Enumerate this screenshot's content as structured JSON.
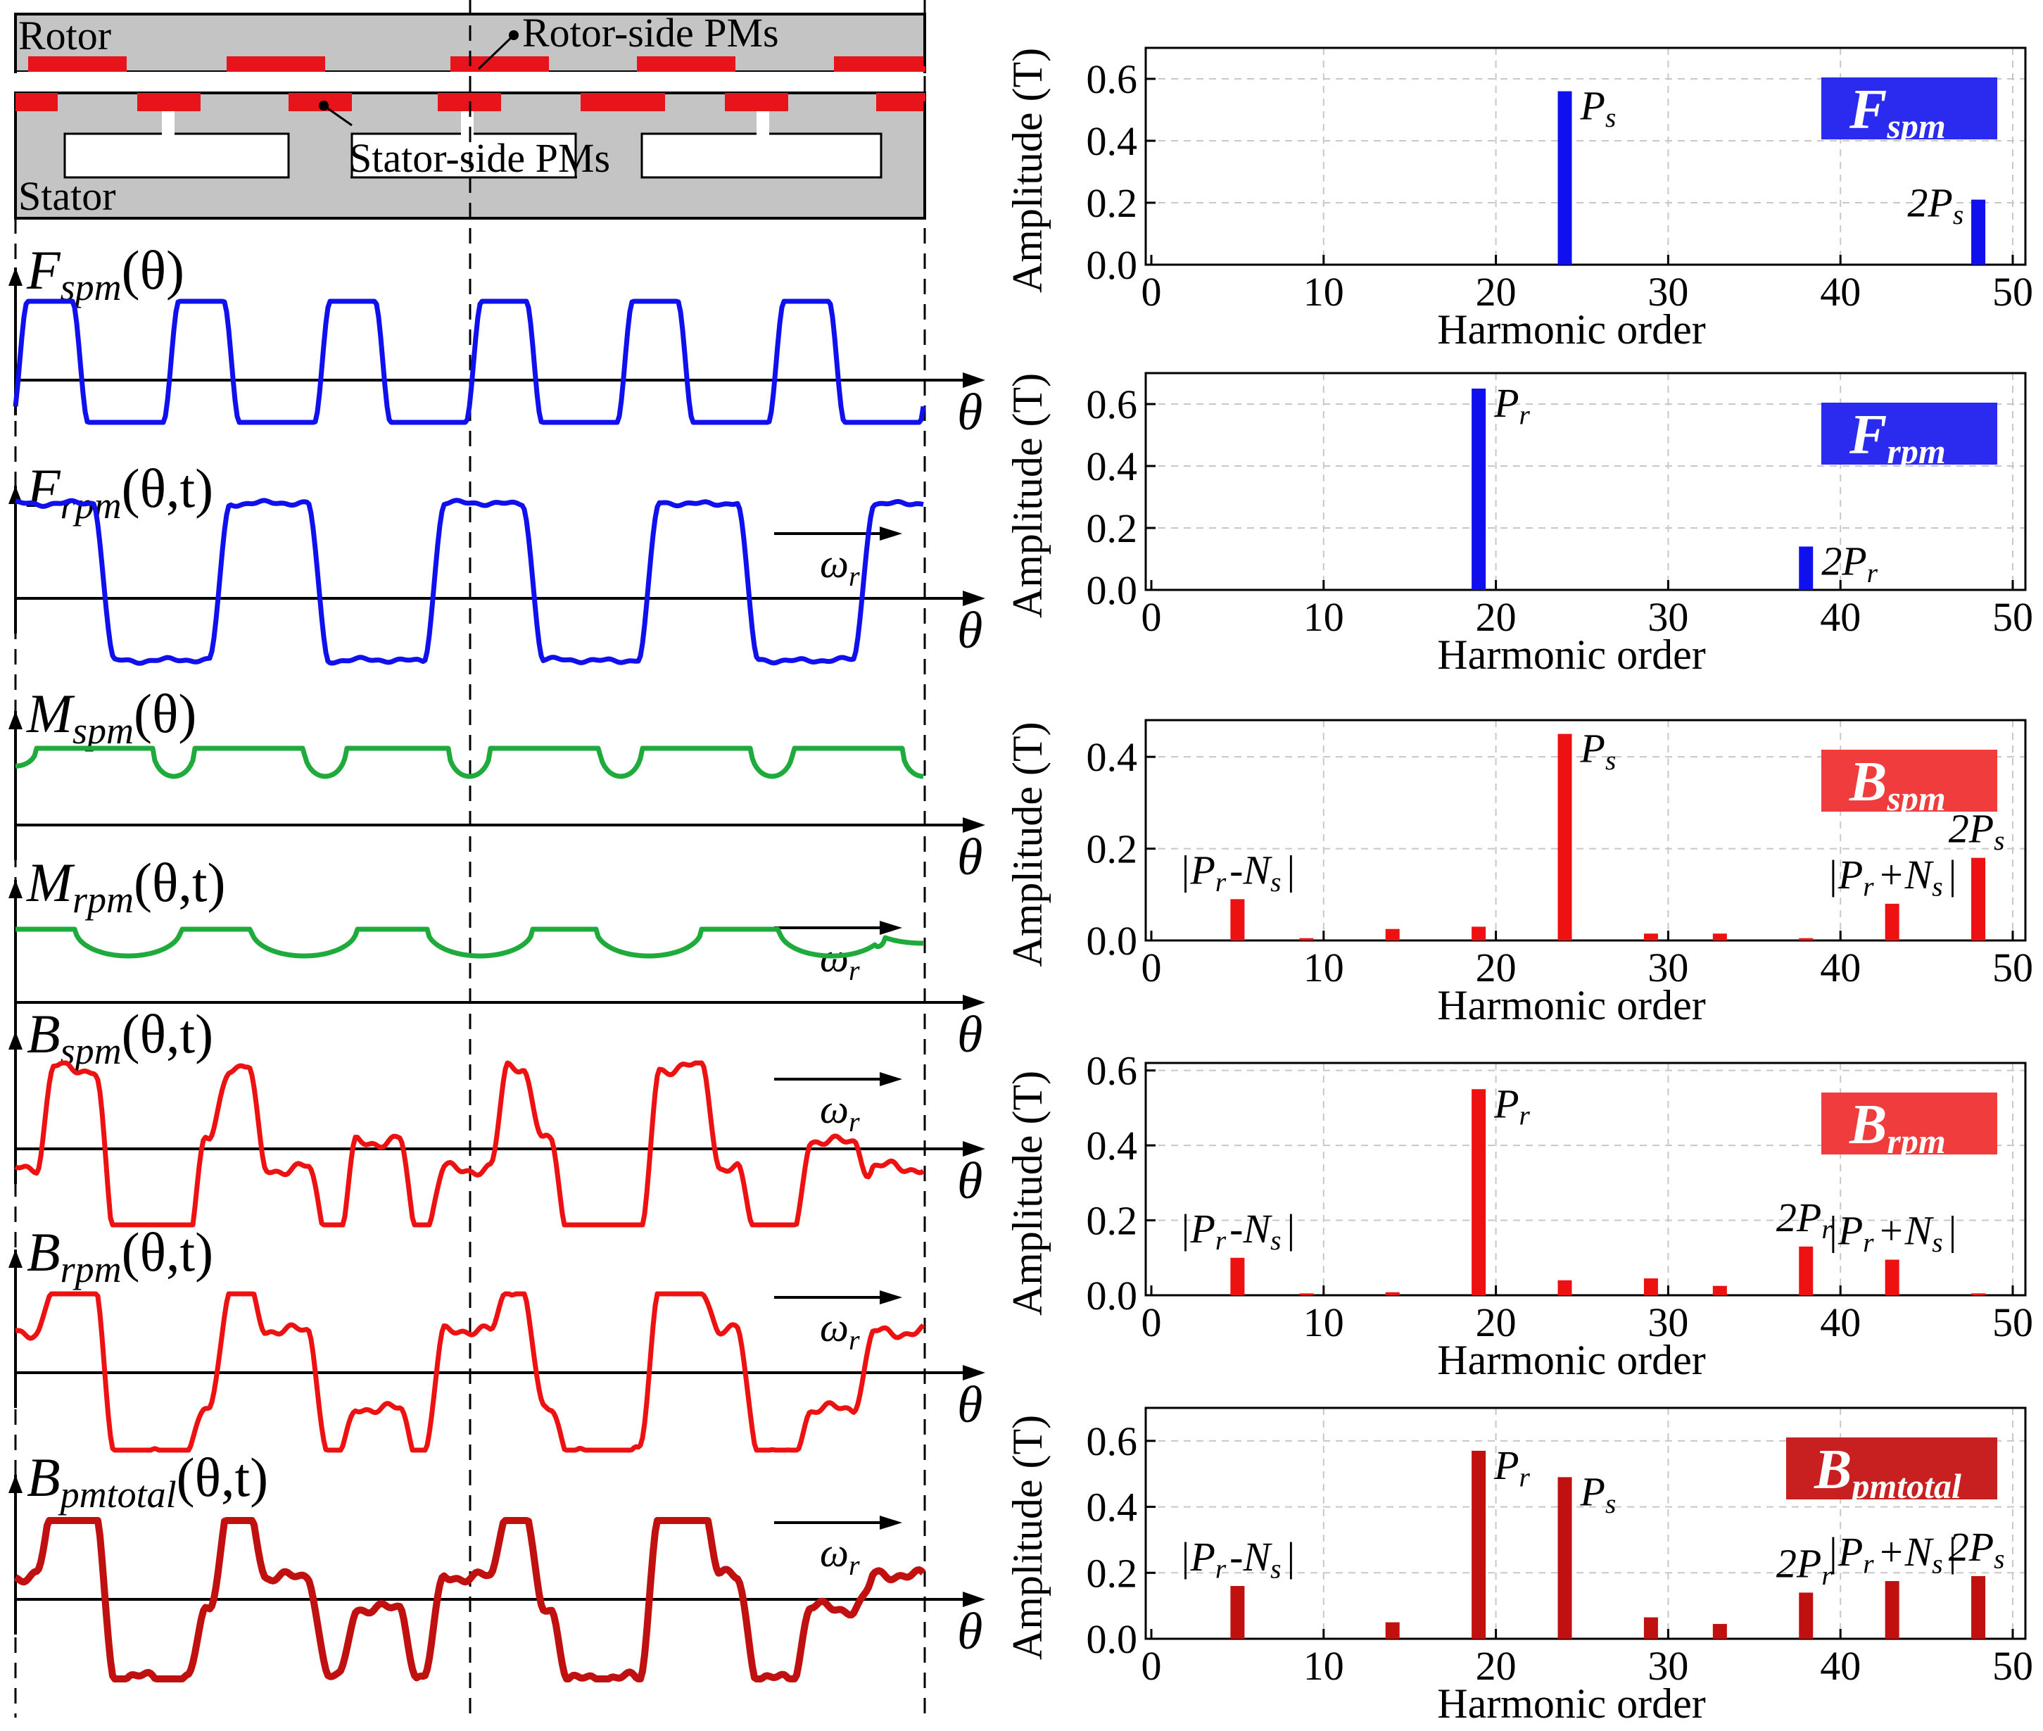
{
  "colors": {
    "blue": "#1010ee",
    "red": "#ee1111",
    "green": "#1faa3c",
    "darkred": "#c01010",
    "pm": "#e8141c",
    "gray": "#c4c4c4"
  },
  "machine": {
    "rotor_label": "Rotor",
    "stator_label": "Stator",
    "rotor_pm_label": "Rotor-side PMs",
    "stator_pm_label": "Stator-side PMs"
  },
  "waveforms": [
    {
      "name": "F",
      "sub": "spm",
      "args": "(θ)",
      "color": "#1010ee",
      "axis_label": "θ",
      "omega": ""
    },
    {
      "name": "F",
      "sub": "rpm",
      "args": "(θ,t)",
      "color": "#1010ee",
      "axis_label": "θ",
      "omega": "ωr"
    },
    {
      "name": "M",
      "sub": "spm",
      "args": "(θ)",
      "color": "#1faa3c",
      "axis_label": "θ",
      "omega": ""
    },
    {
      "name": "M",
      "sub": "rpm",
      "args": "(θ,t)",
      "color": "#1faa3c",
      "axis_label": "θ",
      "omega": "ωr"
    },
    {
      "name": "B",
      "sub": "spm",
      "args": "(θ,t)",
      "color": "#ee1111",
      "axis_label": "θ",
      "omega": "ωr"
    },
    {
      "name": "B",
      "sub": "rpm",
      "args": "(θ,t)",
      "color": "#ee1111",
      "axis_label": "θ",
      "omega": "ωr"
    },
    {
      "name": "B",
      "sub": "pmtotal",
      "args": "(θ,t)",
      "color": "#c01010",
      "axis_label": "θ",
      "omega": "ωr"
    }
  ],
  "chart_data": [
    {
      "type": "bar",
      "badge_main": "F",
      "badge_sub": "spm",
      "badge_color": "#2b2bf0",
      "bar_color": "#1010ee",
      "xlabel": "Harmonic order",
      "ylabel": "Amplitude (T)",
      "xlim": [
        0,
        50
      ],
      "ylim": [
        0,
        0.7
      ],
      "yticks": [
        "0.0",
        "0.2",
        "0.4",
        "0.6"
      ],
      "ytick_values": [
        0,
        0.2,
        0.4,
        0.6
      ],
      "xticks": [
        "0",
        "10",
        "20",
        "30",
        "40",
        "50"
      ],
      "bars": [
        {
          "x": 24,
          "y": 0.56
        },
        {
          "x": 48,
          "y": 0.21
        }
      ],
      "annotations": [
        {
          "text": "Ps",
          "x": 24,
          "y": 0.56,
          "pos": "right"
        },
        {
          "text": "2Ps",
          "x": 48,
          "y": 0.21,
          "pos": "left"
        }
      ]
    },
    {
      "type": "bar",
      "badge_main": "F",
      "badge_sub": "rpm",
      "badge_color": "#2b2bf0",
      "bar_color": "#1010ee",
      "xlabel": "Harmonic order",
      "ylabel": "Amplitude (T)",
      "xlim": [
        0,
        50
      ],
      "ylim": [
        0,
        0.7
      ],
      "yticks": [
        "0.0",
        "0.2",
        "0.4",
        "0.6"
      ],
      "ytick_values": [
        0,
        0.2,
        0.4,
        0.6
      ],
      "xticks": [
        "0",
        "10",
        "20",
        "30",
        "40",
        "50"
      ],
      "bars": [
        {
          "x": 19,
          "y": 0.65
        },
        {
          "x": 38,
          "y": 0.14
        }
      ],
      "annotations": [
        {
          "text": "Pr",
          "x": 19,
          "y": 0.65,
          "pos": "right"
        },
        {
          "text": "2Pr",
          "x": 38,
          "y": 0.14,
          "pos": "right"
        }
      ]
    },
    {
      "type": "bar",
      "badge_main": "B",
      "badge_sub": "spm",
      "badge_color": "#f03c3c",
      "bar_color": "#ee1111",
      "xlabel": "Harmonic order",
      "ylabel": "Amplitude (T)",
      "xlim": [
        0,
        50
      ],
      "ylim": [
        0,
        0.48
      ],
      "yticks": [
        "0.0",
        "0.2",
        "0.4"
      ],
      "ytick_values": [
        0,
        0.2,
        0.4
      ],
      "xticks": [
        "0",
        "10",
        "20",
        "30",
        "40",
        "50"
      ],
      "bars": [
        {
          "x": 5,
          "y": 0.09
        },
        {
          "x": 9,
          "y": 0.005
        },
        {
          "x": 14,
          "y": 0.025
        },
        {
          "x": 19,
          "y": 0.03
        },
        {
          "x": 24,
          "y": 0.45
        },
        {
          "x": 29,
          "y": 0.015
        },
        {
          "x": 33,
          "y": 0.015
        },
        {
          "x": 38,
          "y": 0.005
        },
        {
          "x": 43,
          "y": 0.08
        },
        {
          "x": 48,
          "y": 0.18
        }
      ],
      "annotations": [
        {
          "text": "|Pr-Ns|",
          "x": 5,
          "y": 0.09,
          "pos": "above"
        },
        {
          "text": "Ps",
          "x": 24,
          "y": 0.45,
          "pos": "right"
        },
        {
          "text": "|Pr+Ns|",
          "x": 43,
          "y": 0.08,
          "pos": "above"
        },
        {
          "text": "2Ps",
          "x": 48,
          "y": 0.18,
          "pos": "above"
        }
      ]
    },
    {
      "type": "bar",
      "badge_main": "B",
      "badge_sub": "rpm",
      "badge_color": "#f03c3c",
      "bar_color": "#ee1111",
      "xlabel": "Harmonic order",
      "ylabel": "Amplitude (T)",
      "xlim": [
        0,
        50
      ],
      "ylim": [
        0,
        0.62
      ],
      "yticks": [
        "0.0",
        "0.2",
        "0.4",
        "0.6"
      ],
      "ytick_values": [
        0,
        0.2,
        0.4,
        0.6
      ],
      "xticks": [
        "0",
        "10",
        "20",
        "30",
        "40",
        "50"
      ],
      "bars": [
        {
          "x": 5,
          "y": 0.1
        },
        {
          "x": 9,
          "y": 0.005
        },
        {
          "x": 14,
          "y": 0.008
        },
        {
          "x": 19,
          "y": 0.55
        },
        {
          "x": 24,
          "y": 0.04
        },
        {
          "x": 29,
          "y": 0.045
        },
        {
          "x": 33,
          "y": 0.025
        },
        {
          "x": 38,
          "y": 0.13
        },
        {
          "x": 43,
          "y": 0.095
        },
        {
          "x": 48,
          "y": 0.005
        }
      ],
      "annotations": [
        {
          "text": "|Pr-Ns|",
          "x": 5,
          "y": 0.1,
          "pos": "above"
        },
        {
          "text": "Pr",
          "x": 19,
          "y": 0.55,
          "pos": "right"
        },
        {
          "text": "2Pr",
          "x": 38,
          "y": 0.13,
          "pos": "above"
        },
        {
          "text": "|Pr+Ns|",
          "x": 43,
          "y": 0.095,
          "pos": "above"
        }
      ]
    },
    {
      "type": "bar",
      "badge_main": "B",
      "badge_sub": "pmtotal",
      "badge_color": "#c82020",
      "bar_color": "#c01010",
      "xlabel": "Harmonic order",
      "ylabel": "Amplitude (T)",
      "xlim": [
        0,
        50
      ],
      "ylim": [
        0,
        0.7
      ],
      "yticks": [
        "0.0",
        "0.2",
        "0.4",
        "0.6"
      ],
      "ytick_values": [
        0,
        0.2,
        0.4,
        0.6
      ],
      "xticks": [
        "0",
        "10",
        "20",
        "30",
        "40",
        "50"
      ],
      "bars": [
        {
          "x": 5,
          "y": 0.16
        },
        {
          "x": 14,
          "y": 0.05
        },
        {
          "x": 19,
          "y": 0.57
        },
        {
          "x": 24,
          "y": 0.49
        },
        {
          "x": 29,
          "y": 0.065
        },
        {
          "x": 33,
          "y": 0.045
        },
        {
          "x": 38,
          "y": 0.14
        },
        {
          "x": 43,
          "y": 0.175
        },
        {
          "x": 48,
          "y": 0.19
        }
      ],
      "annotations": [
        {
          "text": "|Pr-Ns|",
          "x": 5,
          "y": 0.16,
          "pos": "above"
        },
        {
          "text": "Pr",
          "x": 19,
          "y": 0.57,
          "pos": "right"
        },
        {
          "text": "Ps",
          "x": 24,
          "y": 0.49,
          "pos": "right"
        },
        {
          "text": "2Pr",
          "x": 38,
          "y": 0.14,
          "pos": "above"
        },
        {
          "text": "|Pr+Ns|",
          "x": 43,
          "y": 0.175,
          "pos": "above"
        },
        {
          "text": "2Ps",
          "x": 48,
          "y": 0.19,
          "pos": "above"
        }
      ]
    }
  ]
}
